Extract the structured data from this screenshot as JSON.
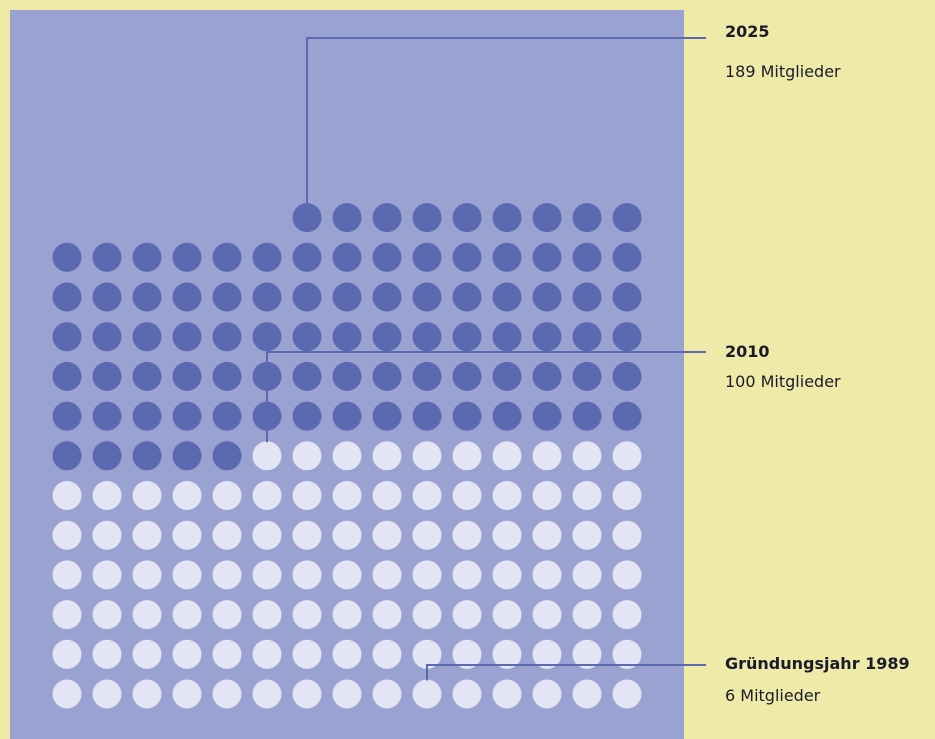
{
  "chart_data": {
    "type": "dot-matrix",
    "unit": "Mitglieder",
    "total_members": 189,
    "columns": 15,
    "colors": {
      "page_background": "#efeaa8",
      "panel_background": "#9aa2d2",
      "dot_default": "#e3e5f5",
      "dot_highlight": "#5a69b0",
      "leader_line": "#5a69b0",
      "text": "#1b1b2b"
    },
    "annotations": [
      {
        "key": "y2025",
        "year_label": "2025",
        "members": 189,
        "count_label": "189 Mitglieder",
        "highlight": true
      },
      {
        "key": "y2010",
        "year_label": "2010",
        "members": 100,
        "count_label": "100 Mitglieder",
        "highlight": false
      },
      {
        "key": "y1989",
        "year_label": "Gründungsjahr 1989",
        "members": 6,
        "count_label": "6 Mitglieder",
        "highlight": false
      }
    ]
  },
  "labels": {
    "y2025_year": "2025",
    "y2025_count": "189 Mitglieder",
    "y2010_year": "2010",
    "y2010_count": "100 Mitglieder",
    "y1989_year": "Gründungsjahr 1989",
    "y1989_count": "6 Mitglieder"
  }
}
